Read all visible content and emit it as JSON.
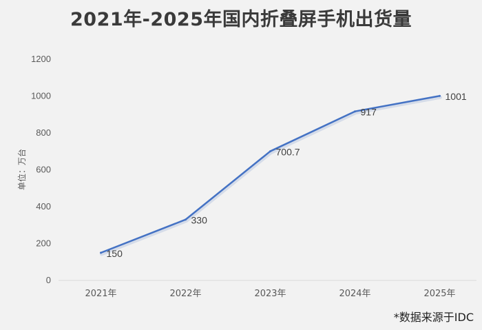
{
  "chart_data": {
    "type": "line",
    "title": "2021年-2025年国内折叠屏手机出货量",
    "ylabel": "单位：万台",
    "xlabel": "",
    "categories": [
      "2021年",
      "2022年",
      "2023年",
      "2024年",
      "2025年"
    ],
    "values": [
      150,
      330,
      700.7,
      917,
      1001
    ],
    "data_labels": [
      "150",
      "330",
      "700.7",
      "917",
      "1001"
    ],
    "ylim": [
      0,
      1200
    ],
    "yticks": [
      0,
      200,
      400,
      600,
      800,
      1000,
      1200
    ],
    "grid": false,
    "line_color": "#4472c4"
  },
  "footer": {
    "source": "*数据来源于IDC"
  }
}
